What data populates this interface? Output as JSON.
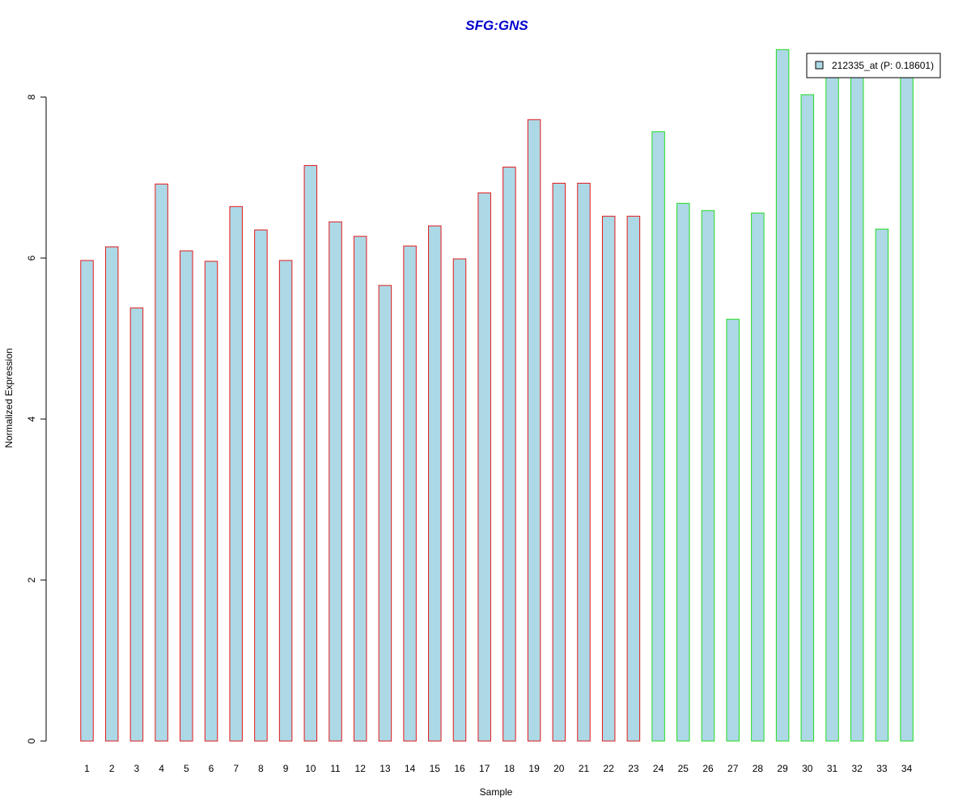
{
  "chart_data": {
    "type": "bar",
    "title": "SFG:GNS",
    "xlabel": "Sample",
    "ylabel": "Normalized Expression",
    "categories": [
      "1",
      "2",
      "3",
      "4",
      "5",
      "6",
      "7",
      "8",
      "9",
      "10",
      "11",
      "12",
      "13",
      "14",
      "15",
      "16",
      "17",
      "18",
      "19",
      "20",
      "21",
      "22",
      "23",
      "24",
      "25",
      "26",
      "27",
      "28",
      "29",
      "30",
      "31",
      "32",
      "33",
      "34"
    ],
    "series": [
      {
        "name": "212335_at (P: 0.18601)",
        "values": [
          5.97,
          6.14,
          5.38,
          6.92,
          6.09,
          5.96,
          6.64,
          6.35,
          5.97,
          7.15,
          6.45,
          6.27,
          5.66,
          6.15,
          6.4,
          5.99,
          6.81,
          7.13,
          7.72,
          6.93,
          6.93,
          6.52,
          6.52,
          7.57,
          6.68,
          6.59,
          5.24,
          6.56,
          8.59,
          8.03,
          8.3,
          8.3,
          6.36,
          8.3
        ]
      }
    ],
    "groups": [
      {
        "samples": "1-23",
        "border_color": "#e31a1c"
      },
      {
        "samples": "24-34",
        "border_color": "#22dd22"
      }
    ],
    "yticks": [
      0,
      2,
      4,
      6,
      8
    ],
    "ylim": [
      0,
      8.6
    ],
    "bar_fill": "#add8e6",
    "title_color": "#0000cc",
    "legend_position": "top-right",
    "grid": false
  }
}
